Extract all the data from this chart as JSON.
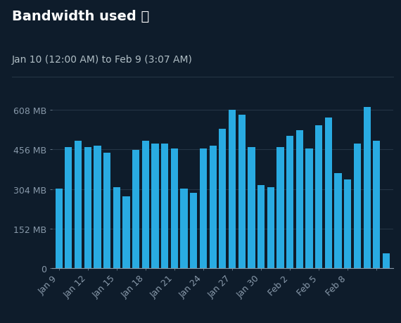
{
  "title": "Bandwidth used ⓘ",
  "subtitle": "Jan 10 (12:00 AM) to Feb 9 (3:07 AM)",
  "background_color": "#0e1c2b",
  "bar_color": "#29abe2",
  "text_color": "#ffffff",
  "subtitle_color": "#b0bec5",
  "axis_label_color": "#8899aa",
  "gridline_color": "#253545",
  "yticks": [
    0,
    152,
    304,
    456,
    608
  ],
  "ytick_labels": [
    "0",
    "152 MB",
    "304 MB",
    "456 MB",
    "608 MB"
  ],
  "ylim": [
    0,
    648
  ],
  "bar_values": [
    305,
    465,
    490,
    465,
    470,
    445,
    310,
    275,
    455,
    490,
    480,
    480,
    460,
    305,
    290,
    460,
    470,
    535,
    610,
    590,
    465,
    320,
    310,
    465,
    510,
    530,
    460,
    550,
    580,
    365,
    340,
    480,
    620,
    490,
    55
  ],
  "x_positions": [
    9,
    10,
    11,
    12,
    13,
    14,
    15,
    16,
    17,
    18,
    19,
    20,
    21,
    22,
    23,
    24,
    25,
    26,
    27,
    28,
    29,
    30,
    31,
    32,
    33,
    34,
    35,
    36,
    37,
    38,
    39,
    40,
    41,
    42,
    43
  ],
  "xtick_positions": [
    9,
    12,
    15,
    18,
    21,
    24,
    27,
    30,
    33,
    36,
    39,
    42
  ],
  "xtick_labels": [
    "Jan 9",
    "Jan 12",
    "Jan 15",
    "Jan 18",
    "Jan 21",
    "Jan 24",
    "Jan 27",
    "Jan 30",
    "Feb 2",
    "Feb 5",
    "Feb 8",
    ""
  ],
  "bar_width": 0.75,
  "title_fontsize": 14,
  "subtitle_fontsize": 10,
  "tick_fontsize": 9
}
